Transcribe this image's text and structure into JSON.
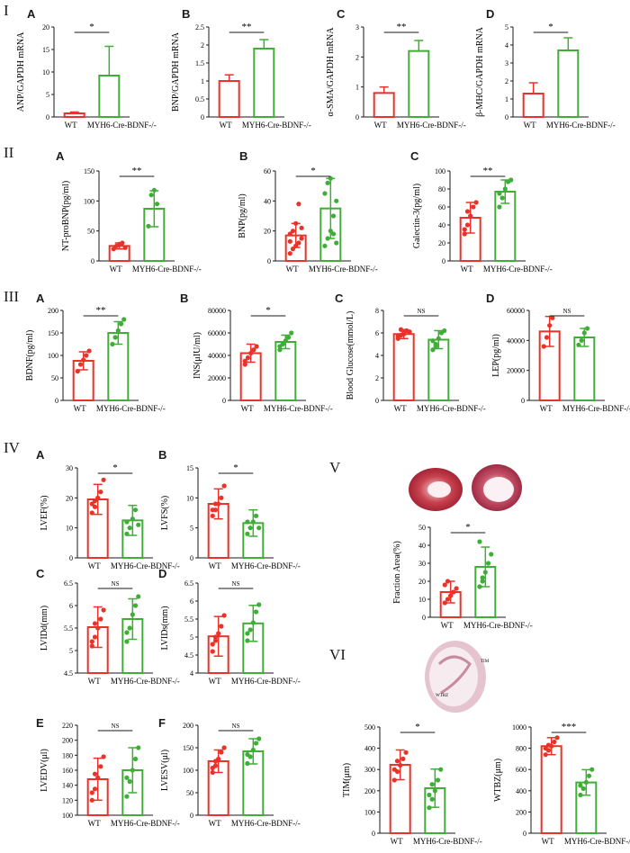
{
  "sections": [
    "I",
    "II",
    "III",
    "IV",
    "V",
    "VI"
  ],
  "colors": {
    "wt": "#e8322a",
    "ko": "#3fae36",
    "axis": "#1a1a1a"
  },
  "panel_letters": {
    "I_A": "A",
    "I_B": "B",
    "I_C": "C",
    "I_D": "D",
    "II_A": "A",
    "II_B": "B",
    "II_C": "C",
    "III_A": "A",
    "III_B": "B",
    "III_C": "C",
    "III_D": "D",
    "IV_A": "A",
    "IV_B": "B",
    "IV_C": "C",
    "IV_D": "D",
    "IV_E": "E",
    "IV_F": "F"
  },
  "histology": {
    "vi_label_1": "TIM",
    "vi_label_2": "WTBZ"
  },
  "chart_data": [
    {
      "id": "I_A",
      "type": "bar",
      "categories": [
        "WT",
        "MYH6-Cre-BDNF-/-"
      ],
      "values": [
        0.8,
        9.2
      ],
      "errors": [
        0.3,
        6.5
      ],
      "ylabel": "ANP/GAPDH mRNA",
      "ylim": [
        0,
        20
      ],
      "ticks": [
        0,
        5,
        10,
        15,
        20
      ],
      "significance": "*"
    },
    {
      "id": "I_B",
      "type": "bar",
      "categories": [
        "WT",
        "MYH6-Cre-BDNF-/-"
      ],
      "values": [
        1.0,
        1.9
      ],
      "errors": [
        0.17,
        0.25
      ],
      "ylabel": "BNP/GAPDH mRNA",
      "ylim": [
        0,
        2.5
      ],
      "ticks": [
        0,
        0.5,
        1.0,
        1.5,
        2.0,
        2.5
      ],
      "significance": "**"
    },
    {
      "id": "I_C",
      "type": "bar",
      "categories": [
        "WT",
        "MYH6-Cre-BDNF-/-"
      ],
      "values": [
        0.8,
        2.2
      ],
      "errors": [
        0.2,
        0.35
      ],
      "ylabel": "α-SMA/GAPDH mRNA",
      "ylim": [
        0,
        3
      ],
      "ticks": [
        0,
        1,
        2,
        3
      ],
      "significance": "**"
    },
    {
      "id": "I_D",
      "type": "bar",
      "categories": [
        "WT",
        "MYH6-Cre-BDNF-/-"
      ],
      "values": [
        1.3,
        3.7
      ],
      "errors": [
        0.6,
        0.7
      ],
      "ylabel": "β-MHC/GAPDH mRNA",
      "ylim": [
        0,
        5
      ],
      "ticks": [
        0,
        1,
        2,
        3,
        4,
        5
      ],
      "significance": "*"
    },
    {
      "id": "II_A",
      "type": "bar",
      "categories": [
        "WT",
        "MYH6-Cre-BDNF-/-"
      ],
      "values": [
        25,
        87
      ],
      "errors": [
        5,
        30
      ],
      "ylabel": "NT-proBNP(pg/ml)",
      "ylim": [
        0,
        150
      ],
      "ticks": [
        0,
        50,
        100,
        150
      ],
      "significance": "**",
      "points": [
        [
          20,
          25,
          28,
          30,
          22
        ],
        [
          58,
          110,
          118,
          95
        ]
      ]
    },
    {
      "id": "II_B",
      "type": "bar",
      "categories": [
        "WT",
        "MYH6-Cre-BDNF-/-"
      ],
      "values": [
        17,
        35
      ],
      "errors": [
        8,
        20
      ],
      "ylabel": "BNP(pg/ml)",
      "ylim": [
        0,
        60
      ],
      "ticks": [
        0,
        20,
        40,
        60
      ],
      "significance": "*",
      "points": [
        [
          5,
          8,
          10,
          12,
          15,
          18,
          20,
          25,
          38,
          22,
          13
        ],
        [
          10,
          15,
          20,
          30,
          40,
          45,
          52,
          55,
          18,
          12
        ]
      ]
    },
    {
      "id": "II_C",
      "type": "bar",
      "categories": [
        "WT",
        "MYH6-Cre-BDNF-/-"
      ],
      "values": [
        48,
        77
      ],
      "errors": [
        17,
        13
      ],
      "ylabel": "Galectin-3(pg/ml)",
      "ylim": [
        0,
        100
      ],
      "ticks": [
        0,
        20,
        40,
        60,
        80,
        100
      ],
      "significance": "**",
      "points": [
        [
          30,
          40,
          50,
          60,
          65,
          35,
          55
        ],
        [
          60,
          70,
          80,
          88,
          90,
          75
        ]
      ]
    },
    {
      "id": "III_A",
      "type": "bar",
      "categories": [
        "WT",
        "MYH6-Cre-BDNF-/-"
      ],
      "values": [
        88,
        150
      ],
      "errors": [
        20,
        25
      ],
      "ylabel": "BDNF(pg/ml)",
      "ylim": [
        0,
        200
      ],
      "ticks": [
        0,
        50,
        100,
        150,
        200
      ],
      "significance": "**",
      "points": [
        [
          65,
          80,
          90,
          100,
          110
        ],
        [
          125,
          140,
          155,
          170,
          180
        ]
      ]
    },
    {
      "id": "III_B",
      "type": "bar",
      "categories": [
        "WT",
        "MYH6-Cre-BDNF-/-"
      ],
      "values": [
        42000,
        52000
      ],
      "errors": [
        8000,
        6000
      ],
      "ylabel": "INS(μIU/ml)",
      "ylim": [
        0,
        80000
      ],
      "ticks": [
        0,
        20000,
        40000,
        60000,
        80000
      ],
      "significance": "*",
      "points": [
        [
          32000,
          38000,
          42000,
          45000,
          48000,
          35000
        ],
        [
          45000,
          50000,
          53000,
          56000,
          60000,
          48000
        ]
      ]
    },
    {
      "id": "III_C",
      "type": "bar",
      "categories": [
        "WT",
        "MYH6-Cre-BDNF-/-"
      ],
      "values": [
        5.9,
        5.4
      ],
      "errors": [
        0.4,
        0.8
      ],
      "ylabel": "Blood Glucose(mmol/L)",
      "ylim": [
        0,
        8
      ],
      "ticks": [
        0,
        2,
        4,
        6,
        8
      ],
      "significance": "NS",
      "points": [
        [
          5.5,
          5.8,
          6.0,
          6.2,
          6.1,
          5.7,
          6.3,
          5.9
        ],
        [
          4.5,
          5.0,
          5.5,
          6.0,
          6.2,
          5.3,
          4.8
        ]
      ]
    },
    {
      "id": "III_D",
      "type": "bar",
      "categories": [
        "WT",
        "MYH6-Cre-BDNF-/-"
      ],
      "values": [
        46000,
        42000
      ],
      "errors": [
        10000,
        6000
      ],
      "ylabel": "LEP(pg/ml)",
      "ylim": [
        0,
        60000
      ],
      "ticks": [
        0,
        20000,
        40000,
        60000
      ],
      "significance": "NS",
      "points": [
        [
          36000,
          42000,
          50000,
          55000
        ],
        [
          37000,
          40000,
          45000,
          48000
        ]
      ]
    },
    {
      "id": "IV_A",
      "type": "bar",
      "categories": [
        "WT",
        "MYH6-Cre-BDNF-/-"
      ],
      "values": [
        19.5,
        12.5
      ],
      "errors": [
        5,
        5
      ],
      "ylabel": "LVEF(%)",
      "ylim": [
        0,
        30
      ],
      "ticks": [
        0,
        10,
        20,
        30
      ],
      "significance": "*",
      "points": [
        [
          15,
          17,
          20,
          22,
          26,
          18,
          19
        ],
        [
          8,
          10,
          13,
          16,
          11,
          12
        ]
      ]
    },
    {
      "id": "IV_B",
      "type": "bar",
      "categories": [
        "WT",
        "MYH6-Cre-BDNF-/-"
      ],
      "values": [
        9,
        5.8
      ],
      "errors": [
        2.5,
        2.2
      ],
      "ylabel": "LVFS(%)",
      "ylim": [
        0,
        15
      ],
      "ticks": [
        0,
        5,
        10,
        15
      ],
      "significance": "*",
      "points": [
        [
          7,
          8,
          9,
          10,
          12,
          8,
          9
        ],
        [
          4,
          5,
          6,
          7,
          5,
          6
        ]
      ]
    },
    {
      "id": "IV_C",
      "type": "bar",
      "categories": [
        "WT",
        "MYH6-Cre-BDNF-/-"
      ],
      "values": [
        5.52,
        5.7
      ],
      "errors": [
        0.45,
        0.45
      ],
      "ylabel": "LVIDd(mm)",
      "ylim": [
        4.5,
        6.5
      ],
      "ticks": [
        4.5,
        5.0,
        5.5,
        6.0,
        6.5
      ],
      "significance": "NS",
      "points": [
        [
          5.1,
          5.3,
          5.5,
          5.7,
          5.9,
          5.2,
          5.6
        ],
        [
          5.2,
          5.5,
          5.8,
          6.0,
          6.2,
          5.4
        ]
      ]
    },
    {
      "id": "IV_D",
      "type": "bar",
      "categories": [
        "WT",
        "MYH6-Cre-BDNF-/-"
      ],
      "values": [
        5.02,
        5.38
      ],
      "errors": [
        0.55,
        0.5
      ],
      "ylabel": "LVIDs(mm)",
      "ylim": [
        4.0,
        6.5
      ],
      "ticks": [
        4.0,
        4.5,
        5.0,
        5.5,
        6.0,
        6.5
      ],
      "significance": "NS",
      "points": [
        [
          4.6,
          4.9,
          5.1,
          5.3,
          5.6,
          4.8,
          5.0
        ],
        [
          4.9,
          5.2,
          5.4,
          5.7,
          5.9,
          5.1
        ]
      ]
    },
    {
      "id": "IV_E",
      "type": "bar",
      "categories": [
        "WT",
        "MYH6-Cre-BDNF-/-"
      ],
      "values": [
        148,
        160
      ],
      "errors": [
        28,
        30
      ],
      "ylabel": "LVEDV(μl)",
      "ylim": [
        100,
        220
      ],
      "ticks": [
        100,
        120,
        140,
        160,
        180,
        200,
        220
      ],
      "significance": "NS",
      "points": [
        [
          120,
          135,
          150,
          165,
          178,
          130,
          155
        ],
        [
          125,
          145,
          160,
          175,
          190,
          150
        ]
      ]
    },
    {
      "id": "IV_F",
      "type": "bar",
      "categories": [
        "WT",
        "MYH6-Cre-BDNF-/-"
      ],
      "values": [
        120,
        142
      ],
      "errors": [
        25,
        28
      ],
      "ylabel": "LVESV(μl)",
      "ylim": [
        0,
        200
      ],
      "ticks": [
        0,
        50,
        100,
        150,
        200
      ],
      "significance": "NS",
      "points": [
        [
          95,
          110,
          125,
          140,
          150,
          105,
          120
        ],
        [
          115,
          130,
          145,
          160,
          170,
          135
        ]
      ]
    },
    {
      "id": "V",
      "type": "bar",
      "categories": [
        "WT",
        "MYH6-Cre-BDNF-/-"
      ],
      "values": [
        14,
        28
      ],
      "errors": [
        6,
        11
      ],
      "ylabel": "Fraction Area(%)",
      "ylim": [
        0,
        50
      ],
      "ticks": [
        0,
        10,
        20,
        30,
        40,
        50
      ],
      "significance": "*",
      "points": [
        [
          8,
          10,
          12,
          14,
          16,
          18,
          20,
          12
        ],
        [
          17,
          20,
          25,
          30,
          35,
          42,
          22
        ]
      ]
    },
    {
      "id": "VI_TIM",
      "type": "bar",
      "categories": [
        "WT",
        "MYH6-Cre-BDNF-/-"
      ],
      "values": [
        322,
        212
      ],
      "errors": [
        70,
        90
      ],
      "ylabel": "TIM(μm)",
      "ylim": [
        0,
        500
      ],
      "ticks": [
        0,
        100,
        200,
        300,
        400,
        500
      ],
      "significance": "*",
      "points": [
        [
          250,
          290,
          320,
          350,
          380,
          300,
          340
        ],
        [
          120,
          160,
          200,
          250,
          300,
          180,
          230
        ]
      ]
    },
    {
      "id": "VI_WTBZ",
      "type": "bar",
      "categories": [
        "WT",
        "MYH6-Cre-BDNF-/-"
      ],
      "values": [
        820,
        478
      ],
      "errors": [
        80,
        120
      ],
      "ylabel": "WTBZ(μm)",
      "ylim": [
        0,
        1000
      ],
      "ticks": [
        0,
        200,
        400,
        600,
        800,
        1000
      ],
      "significance": "***",
      "points": [
        [
          740,
          780,
          820,
          860,
          900,
          800,
          830
        ],
        [
          360,
          420,
          480,
          540,
          600,
          450
        ]
      ]
    }
  ]
}
